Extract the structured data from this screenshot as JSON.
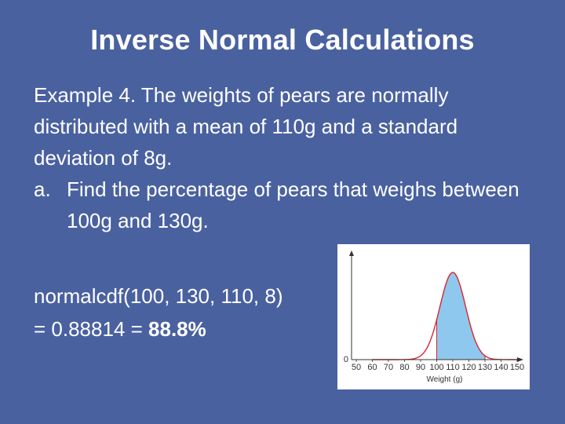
{
  "slide": {
    "title": "Inverse Normal Calculations",
    "paragraph": "Example 4. The weights of pears are normally distributed with a mean of 110g and a standard deviation of 8g.",
    "item_marker": "a.",
    "item_text": "Find the percentage of pears that weighs between 100g and 130g.",
    "formula_line1": "normalcdf(100, 130, 110, 8)",
    "formula_line2_prefix": "= 0.88814 = ",
    "formula_line2_result": "88.8%"
  },
  "chart_data": {
    "type": "area",
    "xlabel": "Weight (g)",
    "x_ticks": [
      50,
      60,
      70,
      80,
      90,
      100,
      110,
      120,
      130,
      140,
      150
    ],
    "y_ticks": [
      0
    ],
    "xlim": [
      50,
      150
    ],
    "mean": 110,
    "sd": 8,
    "shaded_range": [
      100,
      130
    ],
    "colors": {
      "curve": "#d9262b",
      "shade": "#8fc8ee",
      "axis": "#333333"
    }
  }
}
